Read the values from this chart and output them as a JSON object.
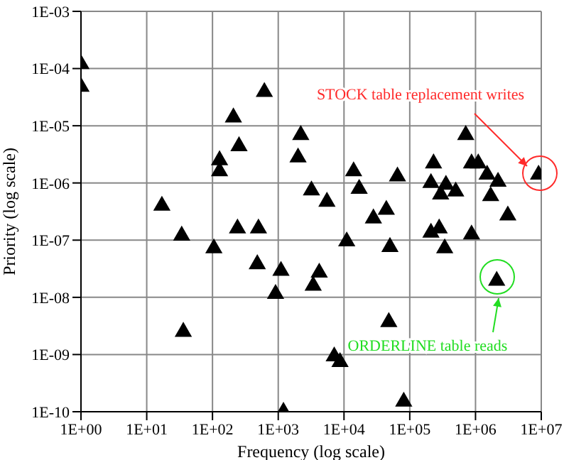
{
  "chart_data": {
    "type": "scatter",
    "xlabel": "Frequency (log scale)",
    "ylabel": "Priority (log scale)",
    "log": "xy",
    "grid": true,
    "legend": false,
    "marker": "triangle",
    "xlim": [
      1,
      10000000
    ],
    "ylim": [
      1e-10,
      0.001
    ],
    "xticks": [
      {
        "value": 1,
        "label": "1E+00"
      },
      {
        "value": 10,
        "label": "1E+01"
      },
      {
        "value": 100,
        "label": "1E+02"
      },
      {
        "value": 1000,
        "label": "1E+03"
      },
      {
        "value": 10000,
        "label": "1E+04"
      },
      {
        "value": 100000,
        "label": "1E+05"
      },
      {
        "value": 1000000,
        "label": "1E+06"
      },
      {
        "value": 10000000,
        "label": "1E+07"
      }
    ],
    "yticks": [
      {
        "value": 1e-10,
        "label": "1E-10"
      },
      {
        "value": 1e-09,
        "label": "1E-09"
      },
      {
        "value": 1e-08,
        "label": "1E-08"
      },
      {
        "value": 1e-07,
        "label": "1E-07"
      },
      {
        "value": 1e-06,
        "label": "1E-06"
      },
      {
        "value": 1e-05,
        "label": "1E-05"
      },
      {
        "value": 0.0001,
        "label": "1E-04"
      },
      {
        "value": 0.001,
        "label": "1E-03"
      }
    ],
    "series": [
      {
        "color": "#000000",
        "x": [
          1,
          1,
          17,
          34,
          36,
          105,
          128,
          128,
          208,
          253,
          240,
          480,
          500,
          615,
          910,
          1100,
          1200,
          2200,
          2000,
          3200,
          3400,
          4200,
          5500,
          7100,
          8700,
          11000,
          14000,
          17000,
          28000,
          44000,
          50000,
          48000,
          65000,
          81000,
          210000,
          230000,
          210000,
          280000,
          295000,
          340000,
          355000,
          500000,
          710000,
          870000,
          870000,
          1100000,
          1500000,
          1700000,
          2200000,
          2100000,
          3100000,
          9100000
        ],
        "values": [
          0.00012,
          4.8e-05,
          4e-07,
          1.2e-07,
          2.5e-09,
          7.2e-08,
          2.5e-06,
          1.6e-06,
          1.4e-05,
          4.4e-06,
          1.6e-07,
          3.8e-08,
          1.6e-07,
          3.9e-05,
          1.15e-08,
          2.9e-08,
          1e-10,
          6.9e-06,
          2.8e-06,
          7.4e-07,
          1.6e-08,
          2.7e-08,
          4.7e-07,
          9.3e-10,
          7.4e-10,
          9.5e-08,
          1.6e-06,
          7.9e-07,
          2.4e-07,
          3.4e-07,
          7.6e-08,
          3.7e-09,
          1.3e-06,
          1.5e-10,
          1e-06,
          2.2e-06,
          1.35e-07,
          1.6e-07,
          6.3e-07,
          7.2e-08,
          9.3e-07,
          7.1e-07,
          6.9e-06,
          2.2e-06,
          1.26e-07,
          2.2e-06,
          1.4e-06,
          5.9e-07,
          1.05e-06,
          1.95e-08,
          2.7e-07,
          1.4e-06
        ]
      }
    ],
    "annotations": [
      "STOCK table replacement writes",
      "ORDERLINE table reads"
    ]
  }
}
